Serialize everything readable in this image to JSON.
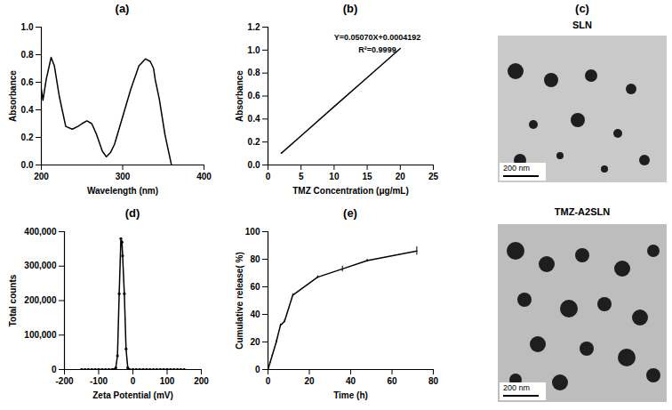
{
  "chart_data": [
    {
      "panel_label": "(a)",
      "type": "line",
      "color": "#000000",
      "xlabel": "Wavelength (nm)",
      "ylabel": "Absorbance",
      "x": [
        200,
        202,
        206,
        212,
        216,
        222,
        230,
        238,
        245,
        250,
        256,
        262,
        268,
        275,
        280,
        285,
        290,
        300,
        310,
        320,
        328,
        334,
        338,
        340,
        345,
        352,
        360
      ],
      "values": [
        0.55,
        0.47,
        0.62,
        0.78,
        0.72,
        0.5,
        0.28,
        0.26,
        0.28,
        0.3,
        0.32,
        0.3,
        0.22,
        0.1,
        0.06,
        0.09,
        0.15,
        0.35,
        0.55,
        0.72,
        0.77,
        0.75,
        0.7,
        0.62,
        0.48,
        0.22,
        0.0
      ],
      "xlim": [
        200,
        400
      ],
      "xticks": [
        200,
        300,
        400
      ],
      "ylim": [
        0,
        1.0
      ],
      "yticks": [
        {
          "value": 0,
          "label": "0.0"
        },
        {
          "value": 0.2,
          "label": "0.2"
        },
        {
          "value": 0.4,
          "label": "0.4"
        },
        {
          "value": 0.6,
          "label": "0.6"
        },
        {
          "value": 0.8,
          "label": "0.8"
        },
        {
          "value": 1.0,
          "label": "1.0"
        }
      ]
    },
    {
      "panel_label": "(b)",
      "type": "line",
      "color": "#000000",
      "xlabel": "TMZ Concentration (μg/mL)",
      "ylabel": "Absorbance",
      "annotations": [
        "Y=0.05070X+0.0004192",
        "R²=0.9999"
      ],
      "x": [
        2,
        5,
        10,
        15,
        20
      ],
      "values": [
        0.102,
        0.254,
        0.508,
        0.761,
        1.014
      ],
      "xlim": [
        0,
        25
      ],
      "xticks": [
        0,
        5,
        10,
        15,
        20,
        25
      ],
      "ylim": [
        0,
        1.2
      ],
      "yticks": [
        {
          "value": 0,
          "label": "0.0"
        },
        {
          "value": 0.2,
          "label": "0.2"
        },
        {
          "value": 0.4,
          "label": "0.4"
        },
        {
          "value": 0.6,
          "label": "0.6"
        },
        {
          "value": 0.8,
          "label": "0.8"
        },
        {
          "value": 1.0,
          "label": "1.0"
        },
        {
          "value": 1.2,
          "label": "1.2"
        }
      ]
    },
    {
      "panel_label": "(d)",
      "type": "line",
      "color": "#000000",
      "marker": "circle",
      "xlabel": "Zeta Potential (mV)",
      "ylabel": "Total counts",
      "x": [
        -150,
        -140,
        -130,
        -120,
        -110,
        -100,
        -90,
        -80,
        -70,
        -60,
        -55,
        -50,
        -45,
        -40,
        -35,
        -32,
        -30,
        -25,
        -20,
        -15,
        -10,
        0,
        10,
        20,
        30,
        40,
        50,
        60,
        70,
        80,
        90,
        100,
        110,
        120,
        130,
        140,
        150
      ],
      "values": [
        0,
        0,
        0,
        0,
        0,
        0,
        0,
        0,
        0,
        0,
        0,
        5000,
        40000,
        220000,
        380000,
        370000,
        330000,
        220000,
        60000,
        5000,
        0,
        0,
        0,
        0,
        0,
        0,
        0,
        0,
        0,
        0,
        0,
        0,
        0,
        0,
        0,
        0,
        0
      ],
      "xlim": [
        -200,
        200
      ],
      "xticks": [
        -200,
        -100,
        0,
        100,
        200
      ],
      "ylim": [
        0,
        400000
      ],
      "yticks": [
        0,
        {
          "value": 100000,
          "label": "100,000"
        },
        {
          "value": 200000,
          "label": "200,000"
        },
        {
          "value": 300000,
          "label": "300,000"
        },
        {
          "value": 400000,
          "label": "400,000"
        }
      ]
    },
    {
      "panel_label": "(e)",
      "type": "line",
      "color": "#000000",
      "xlabel": "Time (h)",
      "ylabel": "Cumulative release( %)",
      "x": [
        0,
        1,
        2,
        4,
        6,
        8,
        12,
        24,
        36,
        48,
        72
      ],
      "values": [
        0,
        5,
        10,
        20,
        32,
        35,
        54,
        67,
        73,
        79,
        86
      ],
      "error": [
        0,
        0.5,
        0.5,
        1,
        1,
        1,
        1,
        1,
        2,
        1,
        3
      ],
      "xlim": [
        0,
        80
      ],
      "xticks": [
        0,
        20,
        40,
        60,
        80
      ],
      "ylim": [
        0,
        100
      ],
      "yticks": [
        0,
        20,
        40,
        60,
        80,
        100
      ]
    }
  ],
  "micrographs": {
    "panel_label": "(c)",
    "images": [
      {
        "title": "SLN",
        "scale_bar": "200 nm"
      },
      {
        "title": "TMZ-A2SLN",
        "scale_bar": "200 nm"
      }
    ]
  }
}
